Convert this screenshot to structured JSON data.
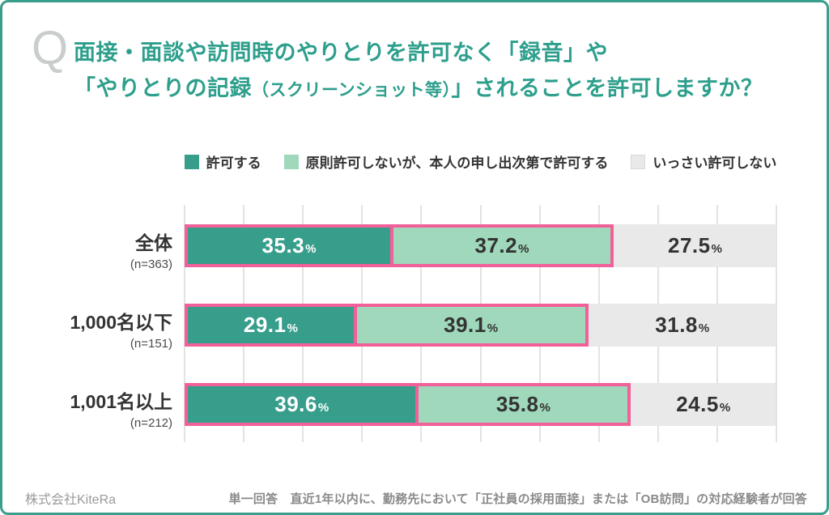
{
  "question": {
    "q_mark": "Q",
    "line1": "面接・面談や訪問時のやりとりを許可なく「録音」や",
    "line2_pre": "「やりとりの記録",
    "line2_small": "（スクリーンショット等）",
    "line2_post": "」されることを許可しますか？"
  },
  "chart_data": {
    "type": "bar",
    "subtype": "horizontal-stacked",
    "unit": "%",
    "xlim": [
      0,
      100
    ],
    "gridline_interval": 10,
    "legend_position": "top",
    "highlight_outline_color": "#f2609a",
    "categories": [
      "全体",
      "1,000名以下",
      "1,001名以上"
    ],
    "category_notes": [
      "(n=363)",
      "(n=151)",
      "(n=212)"
    ],
    "series": [
      {
        "name": "許可する",
        "color": "#389e8c",
        "text_color": "#ffffff",
        "highlighted": true,
        "values": [
          35.3,
          29.1,
          39.6
        ]
      },
      {
        "name": "原則許可しないが、本人の申し出次第で許可する",
        "color": "#9fd8ba",
        "text_color": "#333333",
        "highlighted": true,
        "values": [
          37.2,
          39.1,
          35.8
        ]
      },
      {
        "name": "いっさい許可しない",
        "color": "#e9e9e9",
        "text_color": "#333333",
        "highlighted": false,
        "values": [
          27.5,
          31.8,
          24.5
        ]
      }
    ]
  },
  "footer": {
    "left": "株式会社KiteRa",
    "right": "単一回答　直近1年以内に、勤務先において「正社員の採用面接」または「OB訪問」の対応経験者が回答"
  }
}
